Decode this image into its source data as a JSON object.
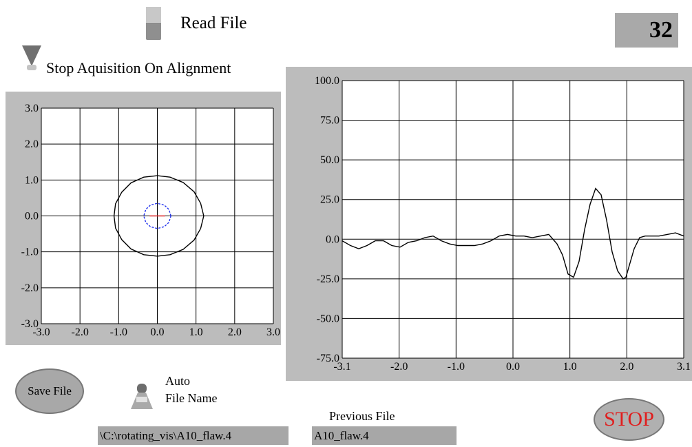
{
  "read_file": {
    "label": "Read File"
  },
  "counter": {
    "value": "32"
  },
  "stop_acquisition": {
    "label": "Stop Aquisition On Alignment"
  },
  "xy_plot": {
    "x_ticks": [
      "-3.0",
      "-2.0",
      "-1.0",
      "0.0",
      "1.0",
      "2.0",
      "3.0"
    ],
    "y_ticks": [
      "3.0",
      "2.0",
      "1.0",
      "0.0",
      "-1.0",
      "-2.0",
      "-3.0"
    ]
  },
  "waveform_plot": {
    "x_ticks": [
      "-3.1",
      "-2.0",
      "-1.0",
      "0.0",
      "1.0",
      "2.0",
      "3.1"
    ],
    "y_ticks": [
      "100.0",
      "75.0",
      "50.0",
      "25.0",
      "0.0",
      "-25.0",
      "-50.0",
      "-75.0"
    ]
  },
  "chart_data": [
    {
      "type": "scatter",
      "xlim": [
        -3.0,
        3.0
      ],
      "ylim": [
        -3.0,
        3.0
      ],
      "grid": true,
      "series": [
        {
          "color": "#000000",
          "points": [
            [
              1.2,
              0.0
            ],
            [
              1.12,
              0.35
            ],
            [
              0.95,
              0.67
            ],
            [
              0.67,
              0.93
            ],
            [
              0.33,
              1.08
            ],
            [
              0.0,
              1.12
            ],
            [
              -0.35,
              1.08
            ],
            [
              -0.68,
              0.92
            ],
            [
              -0.92,
              0.66
            ],
            [
              -1.08,
              0.34
            ],
            [
              -1.12,
              0.0
            ],
            [
              -1.08,
              -0.34
            ],
            [
              -0.92,
              -0.66
            ],
            [
              -0.68,
              -0.92
            ],
            [
              -0.35,
              -1.08
            ],
            [
              0.0,
              -1.12
            ],
            [
              0.33,
              -1.08
            ],
            [
              0.67,
              -0.93
            ],
            [
              0.95,
              -0.67
            ],
            [
              1.12,
              -0.35
            ],
            [
              1.2,
              0.0
            ]
          ]
        },
        {
          "color": "#2233ee",
          "dashed": true,
          "points": [
            [
              0.35,
              0.0
            ],
            [
              0.3,
              0.18
            ],
            [
              0.18,
              0.3
            ],
            [
              0.0,
              0.35
            ],
            [
              -0.18,
              0.3
            ],
            [
              -0.3,
              0.18
            ],
            [
              -0.35,
              0.0
            ],
            [
              -0.3,
              -0.18
            ],
            [
              -0.18,
              -0.3
            ],
            [
              0.0,
              -0.35
            ],
            [
              0.18,
              -0.3
            ],
            [
              0.3,
              -0.18
            ],
            [
              0.35,
              0.0
            ]
          ]
        },
        {
          "color": "#dd2222",
          "points": [
            [
              -0.2,
              0.0
            ],
            [
              0.2,
              0.0
            ]
          ]
        }
      ]
    },
    {
      "type": "line",
      "xlim": [
        -3.1,
        3.1
      ],
      "ylim": [
        -75.0,
        100.0
      ],
      "grid": true,
      "series": [
        {
          "color": "#000000",
          "x": [
            -3.1,
            -2.95,
            -2.8,
            -2.65,
            -2.5,
            -2.35,
            -2.2,
            -2.05,
            -1.9,
            -1.75,
            -1.6,
            -1.45,
            -1.3,
            -1.15,
            -1.0,
            -0.85,
            -0.7,
            -0.55,
            -0.4,
            -0.25,
            -0.1,
            0.05,
            0.2,
            0.35,
            0.5,
            0.65,
            0.8,
            0.9,
            1.0,
            1.1,
            1.2,
            1.3,
            1.4,
            1.5,
            1.6,
            1.7,
            1.8,
            1.9,
            2.0,
            2.05,
            2.1,
            2.2,
            2.3,
            2.4,
            2.5,
            2.65,
            2.8,
            2.95,
            3.1
          ],
          "y": [
            -1,
            -4,
            -6,
            -4,
            -1,
            -1,
            -4,
            -5,
            -2,
            -1,
            1,
            2,
            -1,
            -3,
            -4,
            -4,
            -4,
            -3,
            -1,
            2,
            3,
            2,
            2,
            1,
            2,
            3,
            -3,
            -10,
            -22,
            -24,
            -14,
            6,
            22,
            32,
            28,
            12,
            -8,
            -20,
            -25,
            -24,
            -18,
            -6,
            1,
            2,
            2,
            2,
            3,
            4,
            2
          ]
        }
      ]
    }
  ],
  "save_file": {
    "label": "Save File"
  },
  "auto_file_name": {
    "label_line1": "Auto",
    "label_line2": "File Name"
  },
  "file_path": {
    "value": "\\C:\\rotating_vis\\A10_flaw.4"
  },
  "previous_file": {
    "label": "Previous File",
    "value": "A10_flaw.4"
  },
  "stop": {
    "label": "STOP"
  }
}
